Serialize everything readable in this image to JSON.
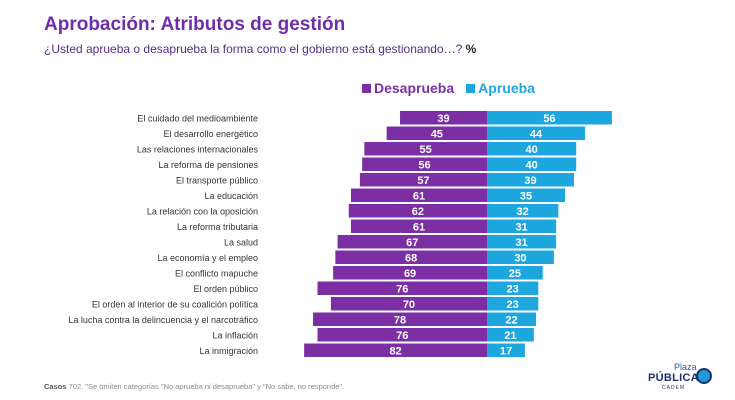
{
  "header": {
    "title": "Aprobación: Atributos de gestión",
    "subtitle": "¿Usted aprueba o desaprueba la forma como el gobierno está gestionando…?",
    "unit": "%"
  },
  "colors": {
    "disapprove": "#7b2fa3",
    "approve": "#1ea7df",
    "title": "#6f2da8"
  },
  "chart_data": {
    "type": "bar",
    "orientation": "horizontal-diverging",
    "categories": [
      "El cuidado del medioambiente",
      "El desarrollo energético",
      "Las relaciones internacionales",
      "La reforma de pensiones",
      "El transporte público",
      "La educación",
      "La relación con la oposición",
      "La reforma tributaria",
      "La salud",
      "La economía y el empleo",
      "El conflicto mapuche",
      "El orden público",
      "El orden al interior de su coalición política",
      "La lucha contra la delincuencia y el narcotráfico",
      "La inflación",
      "La inmigración"
    ],
    "series": [
      {
        "name": "Desaprueba",
        "values": [
          39,
          45,
          55,
          56,
          57,
          61,
          62,
          61,
          67,
          68,
          69,
          76,
          70,
          78,
          76,
          82
        ]
      },
      {
        "name": "Aprueba",
        "values": [
          56,
          44,
          40,
          40,
          39,
          35,
          32,
          31,
          31,
          30,
          25,
          23,
          23,
          22,
          21,
          17
        ]
      }
    ],
    "legend": "top"
  },
  "footer": {
    "note_label": "Casos",
    "note_text": "702. \"Se omiten categorías \"No aprueba ni desaprueba\" y \"No sabe, no responde\".",
    "logo_top": "Plaza",
    "logo_main": "PÚBLICA",
    "logo_sub": "CADEM"
  }
}
